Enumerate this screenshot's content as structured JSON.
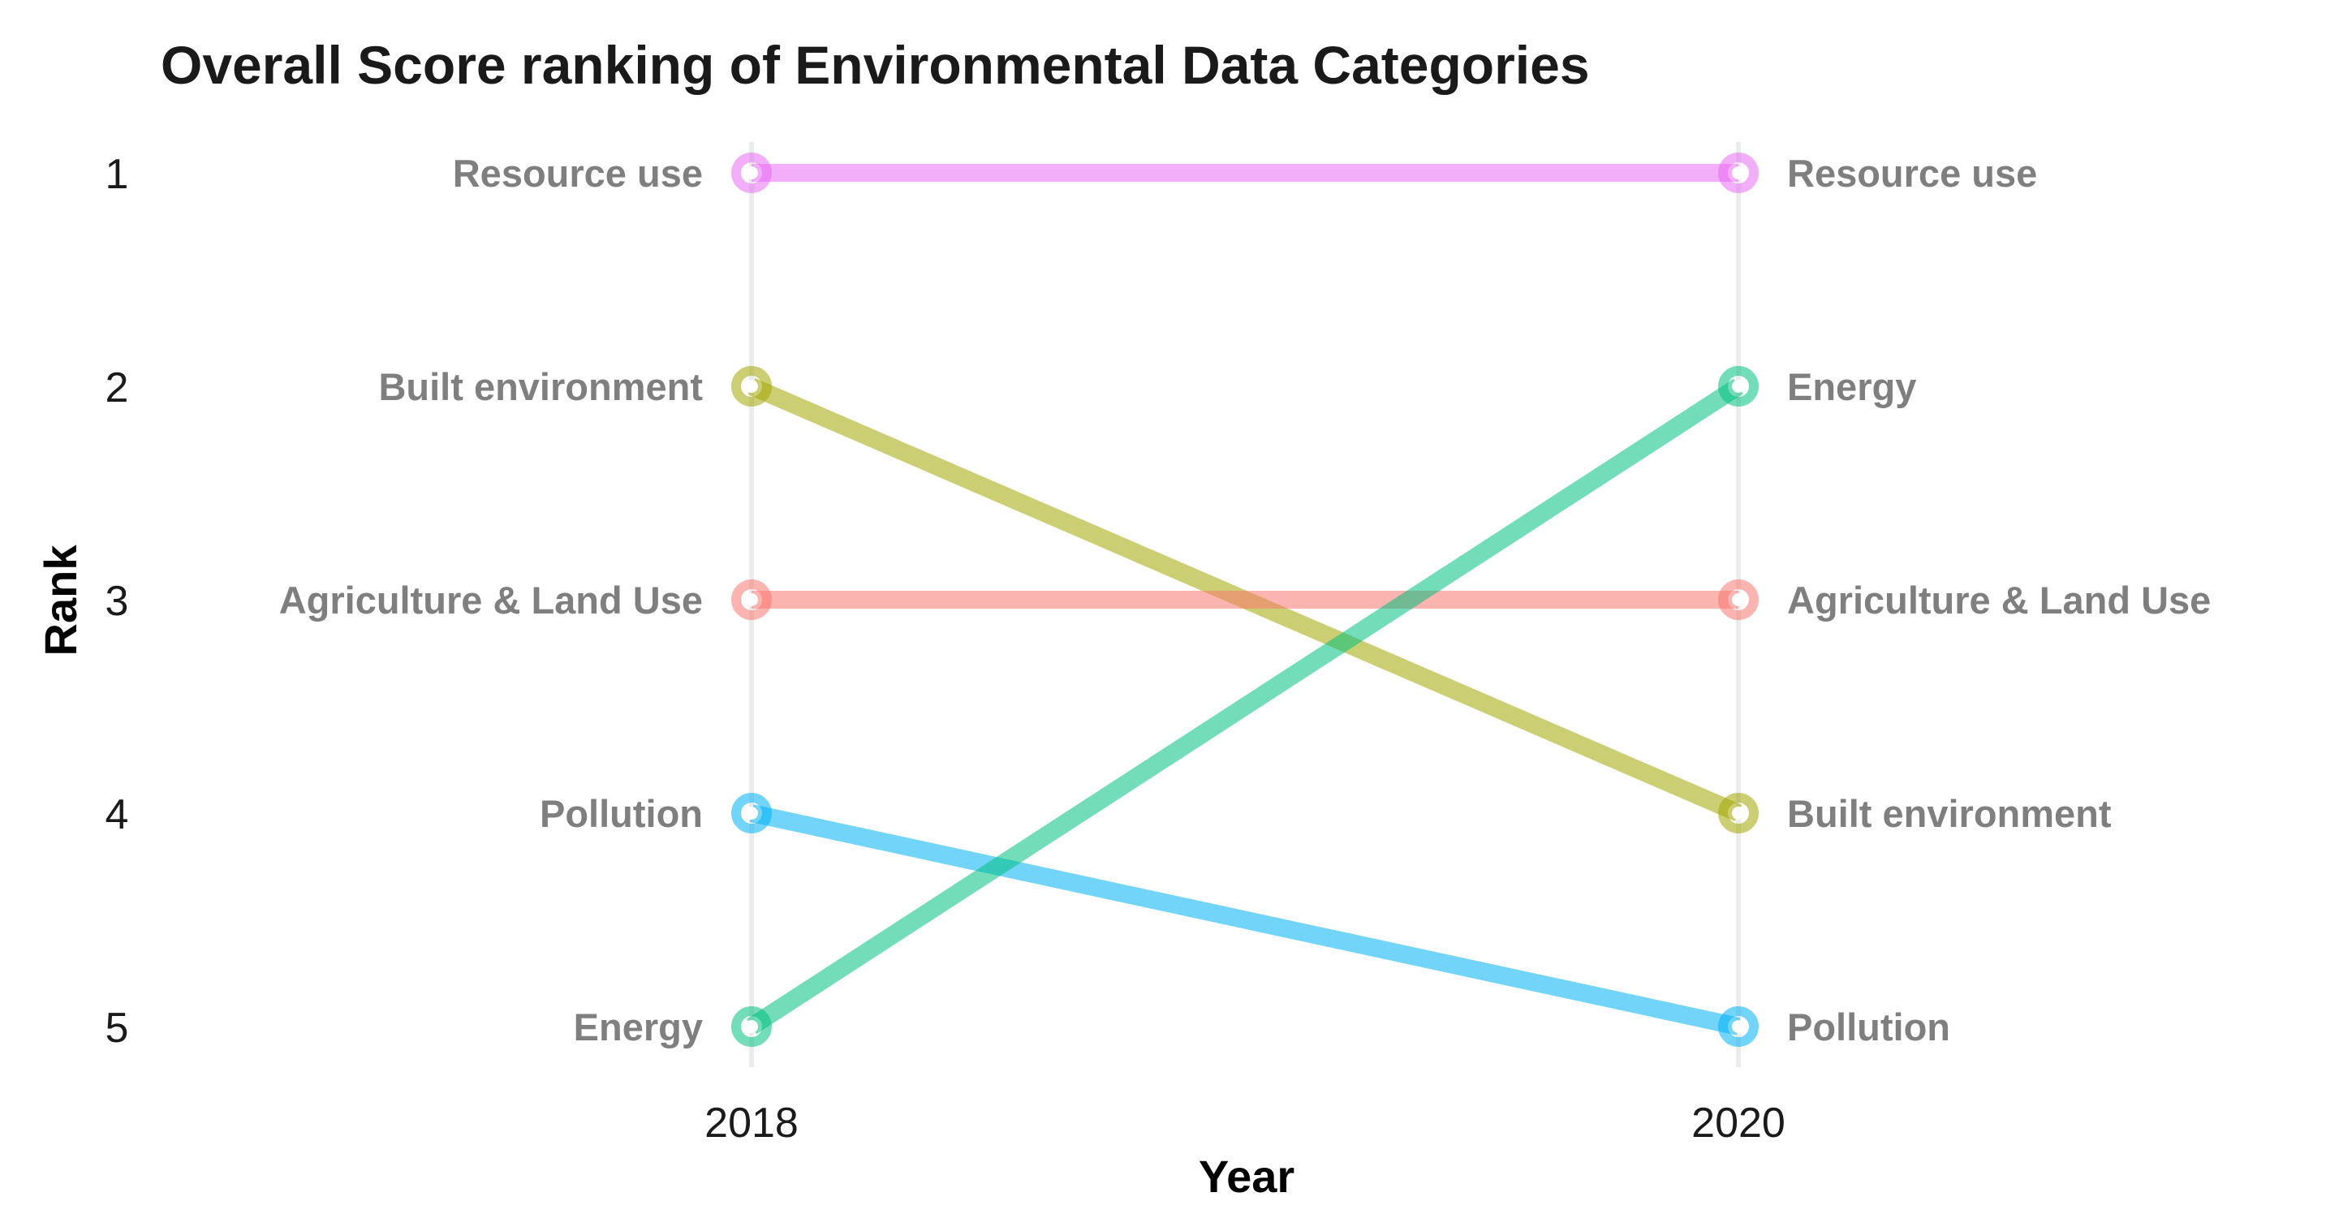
{
  "chart_data": {
    "type": "line",
    "subtype": "bump",
    "title": "Overall Score ranking of Environmental Data Categories",
    "xlabel": "Year",
    "ylabel": "Rank",
    "x": [
      "2018",
      "2020"
    ],
    "y_ticks": [
      "1",
      "2",
      "3",
      "4",
      "5"
    ],
    "ylim": [
      1,
      5
    ],
    "y_reversed": true,
    "grid": "vertical lines at each year",
    "legend": "none (labels at line ends)",
    "series": [
      {
        "name": "Resource use",
        "values": [
          1,
          1
        ],
        "color": "#E76BF3"
      },
      {
        "name": "Built environment",
        "values": [
          2,
          4
        ],
        "color": "#A3A500"
      },
      {
        "name": "Agriculture & Land Use",
        "values": [
          3,
          3
        ],
        "color": "#F8766D"
      },
      {
        "name": "Pollution",
        "values": [
          4,
          5
        ],
        "color": "#00B0F6"
      },
      {
        "name": "Energy",
        "values": [
          5,
          2
        ],
        "color": "#00BF7D"
      }
    ]
  }
}
